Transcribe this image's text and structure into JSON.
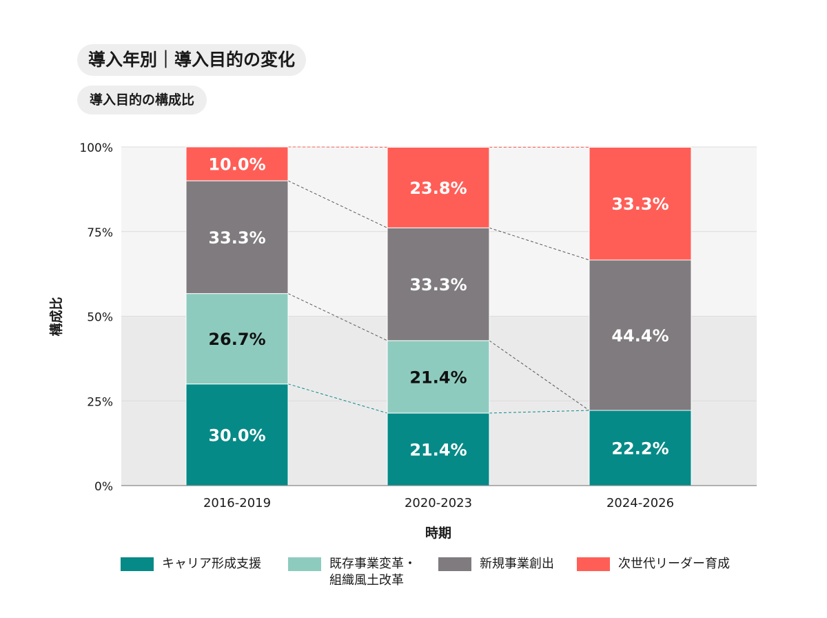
{
  "header": {
    "title": "導入年別｜導入目的の変化",
    "subtitle": "導入目的の構成比"
  },
  "colors": {
    "career": "#058a87",
    "reform": "#8ecbbf",
    "newbiz": "#7f7b7e",
    "leader": "#ff5e57"
  },
  "chart_data": {
    "type": "bar",
    "stacked": true,
    "categories": [
      "2016-2019",
      "2020-2023",
      "2024-2026"
    ],
    "series": [
      {
        "name": "キャリア形成支援",
        "values": [
          30.0,
          21.4,
          22.2
        ],
        "labels": [
          "30.0%",
          "21.4%",
          "22.2%"
        ],
        "color": "#058a87",
        "label_color": "#ffffff"
      },
      {
        "name": "既存事業変革・\n組織風土改革",
        "values": [
          26.7,
          21.4,
          0
        ],
        "labels": [
          "26.7%",
          "21.4%",
          ""
        ],
        "color": "#8ecbbf",
        "label_color": "#111111"
      },
      {
        "name": "新規事業創出",
        "values": [
          33.3,
          33.3,
          44.4
        ],
        "labels": [
          "33.3%",
          "33.3%",
          "44.4%"
        ],
        "color": "#7f7b7e",
        "label_color": "#ffffff"
      },
      {
        "name": "次世代リーダー育成",
        "values": [
          10.0,
          23.8,
          33.3
        ],
        "labels": [
          "10.0%",
          "23.8%",
          "33.3%"
        ],
        "color": "#ff5e57",
        "label_color": "#ffffff"
      }
    ],
    "yticks": [
      "0%",
      "25%",
      "50%",
      "75%",
      "100%"
    ],
    "ylim": [
      0,
      100
    ],
    "xlabel": "時期",
    "ylabel": "構成比",
    "legend_position": "bottom",
    "grid": true
  }
}
